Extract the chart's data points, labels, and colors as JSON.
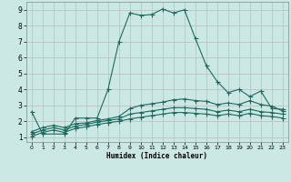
{
  "xlabel": "Humidex (Indice chaleur)",
  "xlim": [
    -0.5,
    23.5
  ],
  "ylim": [
    0.7,
    9.5
  ],
  "xticks": [
    0,
    1,
    2,
    3,
    4,
    5,
    6,
    7,
    8,
    9,
    10,
    11,
    12,
    13,
    14,
    15,
    16,
    17,
    18,
    19,
    20,
    21,
    22,
    23
  ],
  "yticks": [
    1,
    2,
    3,
    4,
    5,
    6,
    7,
    8,
    9
  ],
  "bg_color": "#cce8e4",
  "grid_color": "#c0b8c0",
  "line_color": "#1a6b5e",
  "line1_x": [
    0,
    1,
    3,
    4,
    5,
    6,
    7,
    8,
    9,
    10,
    11,
    12,
    13,
    14,
    15,
    16,
    17,
    18,
    19,
    20,
    21,
    22,
    23
  ],
  "line1_y": [
    2.6,
    1.2,
    1.2,
    2.2,
    2.2,
    2.2,
    4.0,
    7.0,
    8.8,
    8.65,
    8.7,
    9.05,
    8.8,
    9.0,
    7.2,
    5.5,
    4.5,
    3.8,
    4.0,
    3.55,
    3.9,
    2.8,
    2.75
  ],
  "line2_x": [
    0,
    1,
    2,
    3,
    4,
    5,
    6,
    7,
    8,
    9,
    10,
    11,
    12,
    13,
    14,
    15,
    16,
    17,
    18,
    19,
    20,
    21,
    22,
    23
  ],
  "line2_y": [
    1.35,
    1.6,
    1.75,
    1.6,
    1.85,
    1.9,
    2.05,
    2.15,
    2.3,
    2.8,
    3.0,
    3.1,
    3.2,
    3.35,
    3.4,
    3.3,
    3.25,
    3.05,
    3.15,
    3.05,
    3.3,
    3.05,
    2.95,
    2.65
  ],
  "line3_x": [
    0,
    1,
    2,
    3,
    4,
    5,
    6,
    7,
    8,
    9,
    10,
    11,
    12,
    13,
    14,
    15,
    16,
    17,
    18,
    19,
    20,
    21,
    22,
    23
  ],
  "line3_y": [
    1.2,
    1.45,
    1.6,
    1.45,
    1.7,
    1.8,
    1.95,
    2.05,
    2.15,
    2.45,
    2.55,
    2.65,
    2.75,
    2.85,
    2.85,
    2.8,
    2.75,
    2.6,
    2.7,
    2.6,
    2.75,
    2.6,
    2.55,
    2.45
  ],
  "line4_x": [
    0,
    1,
    2,
    3,
    4,
    5,
    6,
    7,
    8,
    9,
    10,
    11,
    12,
    13,
    14,
    15,
    16,
    17,
    18,
    19,
    20,
    21,
    22,
    23
  ],
  "line4_y": [
    1.05,
    1.3,
    1.45,
    1.3,
    1.55,
    1.65,
    1.8,
    1.9,
    2.0,
    2.15,
    2.25,
    2.35,
    2.45,
    2.55,
    2.55,
    2.5,
    2.45,
    2.35,
    2.45,
    2.35,
    2.5,
    2.35,
    2.3,
    2.2
  ]
}
